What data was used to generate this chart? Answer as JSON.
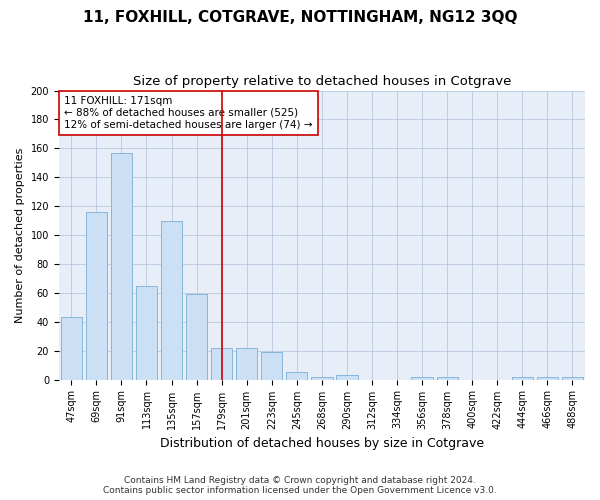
{
  "title": "11, FOXHILL, COTGRAVE, NOTTINGHAM, NG12 3QQ",
  "subtitle": "Size of property relative to detached houses in Cotgrave",
  "xlabel": "Distribution of detached houses by size in Cotgrave",
  "ylabel": "Number of detached properties",
  "categories": [
    "47sqm",
    "69sqm",
    "91sqm",
    "113sqm",
    "135sqm",
    "157sqm",
    "179sqm",
    "201sqm",
    "223sqm",
    "245sqm",
    "268sqm",
    "290sqm",
    "312sqm",
    "334sqm",
    "356sqm",
    "378sqm",
    "400sqm",
    "422sqm",
    "444sqm",
    "466sqm",
    "488sqm"
  ],
  "values": [
    43,
    116,
    157,
    65,
    110,
    59,
    22,
    22,
    19,
    5,
    2,
    3,
    0,
    0,
    2,
    2,
    0,
    0,
    2,
    2,
    2
  ],
  "bar_face_color": "#cce0f5",
  "bar_edge_color": "#7bafd4",
  "marker_index": 6,
  "marker_color": "#cc0000",
  "annotation_line1": "11 FOXHILL: 171sqm",
  "annotation_line2": "← 88% of detached houses are smaller (525)",
  "annotation_line3": "12% of semi-detached houses are larger (74) →",
  "annotation_box_color": "#ffffff",
  "annotation_box_edge": "#cc0000",
  "background_color": "#e8eef8",
  "ylim": [
    0,
    200
  ],
  "yticks": [
    0,
    20,
    40,
    60,
    80,
    100,
    120,
    140,
    160,
    180,
    200
  ],
  "footer1": "Contains HM Land Registry data © Crown copyright and database right 2024.",
  "footer2": "Contains public sector information licensed under the Open Government Licence v3.0.",
  "title_fontsize": 11,
  "subtitle_fontsize": 9.5,
  "ylabel_fontsize": 8,
  "xlabel_fontsize": 9,
  "tick_fontsize": 7,
  "annotation_fontsize": 7.5,
  "footer_fontsize": 6.5
}
